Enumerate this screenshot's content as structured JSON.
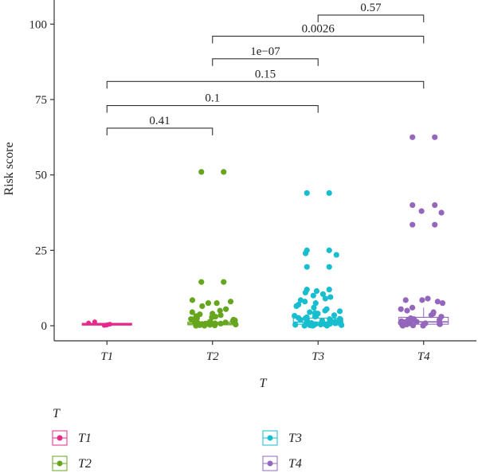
{
  "chart_data": {
    "type": "boxplot-jitter",
    "xlabel": "T",
    "ylabel": "Risk score",
    "ylim": [
      -5,
      108
    ],
    "yticks": [
      0,
      25,
      50,
      75,
      100
    ],
    "categories": [
      "T1",
      "T2",
      "T3",
      "T4"
    ],
    "colors": {
      "T1": "#e7298a",
      "T2": "#66a61e",
      "T3": "#17becf",
      "T4": "#9467bd"
    },
    "legend": {
      "title": "T",
      "placement": "bottom",
      "entries": [
        "T1",
        "T2",
        "T3",
        "T4"
      ]
    },
    "boxes": [
      {
        "group": "T1",
        "q1": 0.2,
        "median": 0.5,
        "q3": 0.8,
        "whisker_low": 0.0,
        "whisker_high": 1.0
      },
      {
        "group": "T2",
        "q1": 0.3,
        "median": 0.7,
        "q3": 1.2,
        "whisker_low": 0.0,
        "whisker_high": 2.5
      },
      {
        "group": "T3",
        "q1": 0.5,
        "median": 1.2,
        "q3": 2.5,
        "whisker_low": 0.0,
        "whisker_high": 5.0
      },
      {
        "group": "T4",
        "q1": 0.5,
        "median": 1.3,
        "q3": 2.8,
        "whisker_low": 0.0,
        "whisker_high": 6.0
      }
    ],
    "points": [
      {
        "group": "T1",
        "values": [
          0.2,
          0.5,
          0.9,
          1.3,
          0.1,
          0.3
        ]
      },
      {
        "group": "T2",
        "values": [
          51,
          51,
          14.5,
          14.5,
          8.5,
          8,
          7.5,
          7.5,
          6.5,
          5.5,
          5,
          4.5,
          4,
          3.8,
          3.5,
          3.2,
          3,
          2.8,
          2.5,
          2.2,
          2,
          1.8,
          1.5,
          1.3,
          1.2,
          1,
          0.9,
          0.8,
          0.7,
          0.6,
          0.5,
          0.4,
          0.3,
          0.2,
          0.1,
          0,
          0,
          1.1,
          0.7,
          0.4,
          2.1,
          1.6
        ]
      },
      {
        "group": "T3",
        "values": [
          44,
          44,
          25,
          25,
          24,
          23.5,
          19.5,
          19.5,
          12,
          12,
          11.5,
          11,
          10.5,
          10,
          9.5,
          9,
          8.5,
          8,
          7.5,
          7,
          6.5,
          6,
          5.5,
          5,
          4.8,
          4.5,
          4.2,
          4,
          3.8,
          3.5,
          3.2,
          3,
          2.8,
          2.5,
          2.2,
          2,
          1.8,
          1.6,
          1.4,
          1.2,
          1,
          0.8,
          0.6,
          0.5,
          0.4,
          0.3,
          0.2,
          0.1,
          0,
          0,
          0,
          1.1,
          0.7,
          2.3,
          3.3,
          0.9,
          1.7,
          0.5,
          2.6,
          0.2
        ]
      },
      {
        "group": "T4",
        "values": [
          62.5,
          62.5,
          40,
          40,
          38,
          37.5,
          33.5,
          33.5,
          9,
          8.5,
          8.5,
          8,
          7.5,
          6,
          5.5,
          5,
          4.5,
          4,
          3.5,
          3,
          2.5,
          2,
          1.8,
          1.5,
          1.2,
          1,
          0.8,
          0.6,
          0.5,
          0.4,
          0.3,
          0.2,
          0.1,
          0,
          0,
          1.3,
          0.7,
          2.2
        ]
      }
    ],
    "comparisons": [
      {
        "from": "T3",
        "to": "T4",
        "label": "0.57",
        "y": 103
      },
      {
        "from": "T2",
        "to": "T4",
        "label": "0.0026",
        "y": 96
      },
      {
        "from": "T2",
        "to": "T3",
        "label": "1e−07",
        "y": 88.5
      },
      {
        "from": "T1",
        "to": "T4",
        "label": "0.15",
        "y": 81
      },
      {
        "from": "T1",
        "to": "T3",
        "label": "0.1",
        "y": 73
      },
      {
        "from": "T1",
        "to": "T2",
        "label": "0.41",
        "y": 65.5
      }
    ]
  }
}
